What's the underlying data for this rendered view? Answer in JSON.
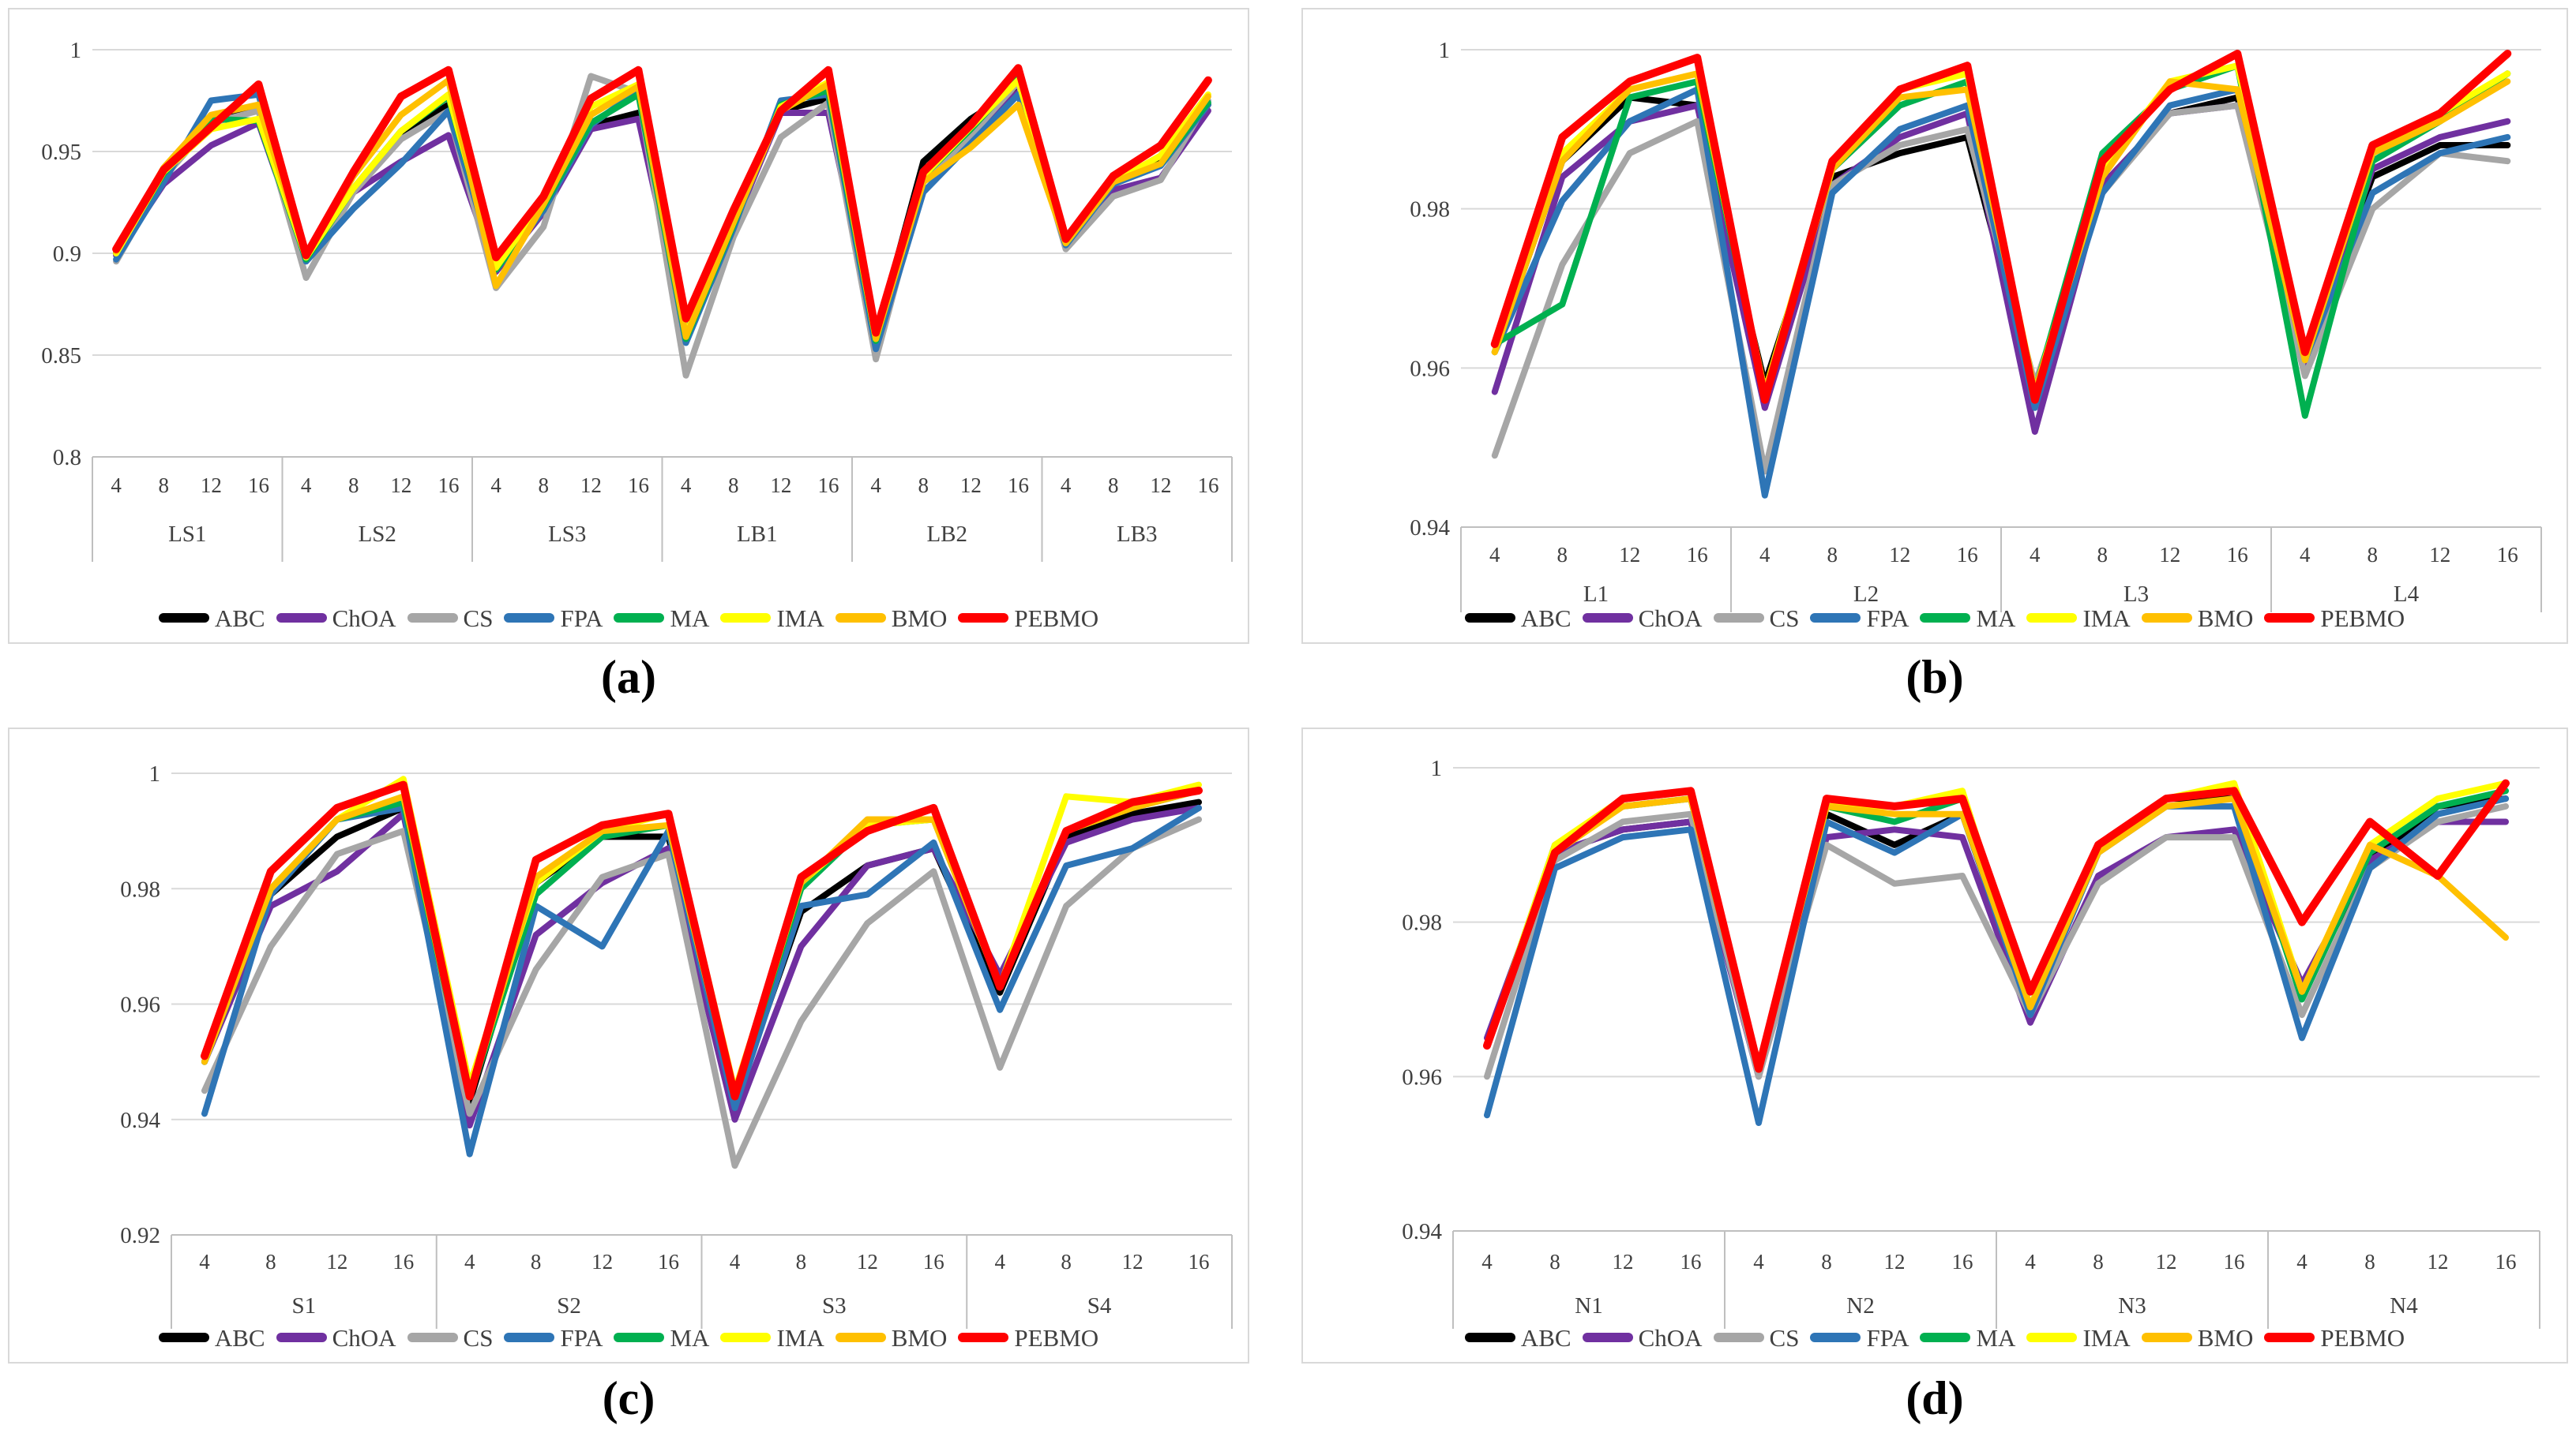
{
  "page": {
    "background": "#ffffff",
    "text_color": "#404040",
    "gridline_color": "#d9d9d9",
    "axis_line_color": "#bfbfbf"
  },
  "chart_data": [
    {
      "id": "a",
      "type": "line",
      "caption": "(a)",
      "title": "",
      "xlabel": "",
      "ylabel": "",
      "legend_position": "bottom",
      "grid": true,
      "ylim": [
        0.8,
        1.0
      ],
      "y_ticks": [
        1,
        0.95,
        0.9,
        0.85,
        0.8
      ],
      "y_tick_labels": [
        "1",
        "0.95",
        "0.9",
        "0.85",
        "0.8"
      ],
      "groups": [
        "LS1",
        "LS2",
        "LS3",
        "LB1",
        "LB2",
        "LB3"
      ],
      "x_ticks_per_group": [
        "4",
        "8",
        "12",
        "16"
      ],
      "series": [
        {
          "name": "ABC",
          "color": "#000000",
          "values": [
            0.9,
            0.938,
            0.965,
            0.972,
            0.898,
            0.931,
            0.958,
            0.973,
            0.891,
            0.922,
            0.963,
            0.969,
            0.86,
            0.914,
            0.97,
            0.976,
            0.859,
            0.945,
            0.966,
            0.981,
            0.905,
            0.936,
            0.945,
            0.973
          ]
        },
        {
          "name": "ChOA",
          "color": "#7030a0",
          "values": [
            0.899,
            0.934,
            0.953,
            0.964,
            0.897,
            0.93,
            0.945,
            0.958,
            0.891,
            0.92,
            0.961,
            0.966,
            0.861,
            0.913,
            0.969,
            0.969,
            0.86,
            0.937,
            0.959,
            0.979,
            0.905,
            0.931,
            0.937,
            0.97
          ]
        },
        {
          "name": "CS",
          "color": "#a6a6a6",
          "values": [
            0.896,
            0.937,
            0.964,
            0.97,
            0.888,
            0.93,
            0.956,
            0.97,
            0.883,
            0.913,
            0.987,
            0.979,
            0.84,
            0.908,
            0.957,
            0.974,
            0.848,
            0.935,
            0.958,
            0.984,
            0.902,
            0.928,
            0.936,
            0.975
          ]
        },
        {
          "name": "FPA",
          "color": "#2e75b6",
          "values": [
            0.897,
            0.935,
            0.975,
            0.978,
            0.896,
            0.922,
            0.944,
            0.97,
            0.892,
            0.921,
            0.963,
            0.98,
            0.856,
            0.912,
            0.975,
            0.978,
            0.853,
            0.93,
            0.954,
            0.978,
            0.904,
            0.934,
            0.943,
            0.973
          ]
        },
        {
          "name": "MA",
          "color": "#00b050",
          "values": [
            0.901,
            0.939,
            0.966,
            0.965,
            0.897,
            0.932,
            0.96,
            0.977,
            0.892,
            0.923,
            0.964,
            0.978,
            0.858,
            0.914,
            0.973,
            0.98,
            0.857,
            0.938,
            0.961,
            0.986,
            0.905,
            0.935,
            0.944,
            0.974
          ]
        },
        {
          "name": "IMA",
          "color": "#ffff00",
          "values": [
            0.9,
            0.94,
            0.961,
            0.966,
            0.898,
            0.932,
            0.96,
            0.978,
            0.893,
            0.926,
            0.972,
            0.983,
            0.86,
            0.917,
            0.972,
            0.984,
            0.858,
            0.938,
            0.962,
            0.985,
            0.905,
            0.935,
            0.948,
            0.978
          ]
        },
        {
          "name": "BMO",
          "color": "#ffc000",
          "values": [
            0.901,
            0.942,
            0.968,
            0.973,
            0.899,
            0.938,
            0.968,
            0.985,
            0.884,
            0.924,
            0.968,
            0.982,
            0.859,
            0.915,
            0.97,
            0.983,
            0.858,
            0.935,
            0.952,
            0.973,
            0.905,
            0.935,
            0.944,
            0.977
          ]
        },
        {
          "name": "PEBMO",
          "color": "#ff0000",
          "values": [
            0.902,
            0.941,
            0.962,
            0.983,
            0.899,
            0.94,
            0.977,
            0.99,
            0.898,
            0.928,
            0.976,
            0.99,
            0.868,
            0.921,
            0.97,
            0.99,
            0.861,
            0.94,
            0.963,
            0.991,
            0.907,
            0.938,
            0.953,
            0.985
          ]
        }
      ]
    },
    {
      "id": "b",
      "type": "line",
      "caption": "(b)",
      "title": "",
      "xlabel": "",
      "ylabel": "",
      "legend_position": "bottom",
      "grid": true,
      "ylim": [
        0.94,
        1.0
      ],
      "y_ticks": [
        1,
        0.98,
        0.96,
        0.94
      ],
      "y_tick_labels": [
        "1",
        "0.98",
        "0.96",
        "0.94"
      ],
      "groups": [
        "L1",
        "L2",
        "L3",
        "L4"
      ],
      "x_ticks_per_group": [
        "4",
        "8",
        "12",
        "16"
      ],
      "series": [
        {
          "name": "ABC",
          "color": "#000000",
          "values": [
            0.962,
            0.986,
            0.994,
            0.993,
            0.958,
            0.984,
            0.987,
            0.989,
            0.957,
            0.983,
            0.992,
            0.994,
            0.961,
            0.984,
            0.988,
            0.988
          ]
        },
        {
          "name": "ChOA",
          "color": "#7030a0",
          "values": [
            0.957,
            0.984,
            0.991,
            0.993,
            0.955,
            0.983,
            0.989,
            0.992,
            0.952,
            0.983,
            0.992,
            0.993,
            0.96,
            0.985,
            0.989,
            0.991
          ]
        },
        {
          "name": "CS",
          "color": "#a6a6a6",
          "values": [
            0.949,
            0.973,
            0.987,
            0.991,
            0.947,
            0.983,
            0.988,
            0.99,
            0.958,
            0.982,
            0.992,
            0.993,
            0.959,
            0.98,
            0.987,
            0.986
          ]
        },
        {
          "name": "FPA",
          "color": "#2e75b6",
          "values": [
            0.962,
            0.981,
            0.991,
            0.995,
            0.944,
            0.982,
            0.99,
            0.993,
            0.955,
            0.982,
            0.993,
            0.995,
            0.961,
            0.982,
            0.987,
            0.989
          ]
        },
        {
          "name": "MA",
          "color": "#00b050",
          "values": [
            0.963,
            0.968,
            0.994,
            0.996,
            0.957,
            0.985,
            0.993,
            0.996,
            0.957,
            0.987,
            0.995,
            0.998,
            0.954,
            0.986,
            0.991,
            0.997
          ]
        },
        {
          "name": "IMA",
          "color": "#ffff00",
          "values": [
            0.962,
            0.987,
            0.995,
            0.997,
            0.957,
            0.986,
            0.995,
            0.997,
            0.957,
            0.985,
            0.996,
            0.998,
            0.961,
            0.987,
            0.992,
            0.997
          ]
        },
        {
          "name": "BMO",
          "color": "#ffc000",
          "values": [
            0.962,
            0.986,
            0.995,
            0.997,
            0.957,
            0.985,
            0.994,
            0.995,
            0.957,
            0.984,
            0.996,
            0.995,
            0.961,
            0.987,
            0.991,
            0.996
          ]
        },
        {
          "name": "PEBMO",
          "color": "#ff0000",
          "values": [
            0.963,
            0.989,
            0.996,
            0.999,
            0.956,
            0.986,
            0.995,
            0.998,
            0.956,
            0.986,
            0.995,
            0.9995,
            0.962,
            0.988,
            0.992,
            0.9995
          ]
        }
      ]
    },
    {
      "id": "c",
      "type": "line",
      "caption": "(c)",
      "title": "",
      "xlabel": "",
      "ylabel": "",
      "legend_position": "bottom",
      "grid": true,
      "ylim": [
        0.92,
        1.0
      ],
      "y_ticks": [
        1,
        0.98,
        0.96,
        0.94,
        0.92
      ],
      "y_tick_labels": [
        "1",
        "0.98",
        "0.96",
        "0.94",
        "0.92"
      ],
      "groups": [
        "S1",
        "S2",
        "S3",
        "S4"
      ],
      "x_ticks_per_group": [
        "4",
        "8",
        "12",
        "16"
      ],
      "series": [
        {
          "name": "ABC",
          "color": "#000000",
          "values": [
            0.95,
            0.979,
            0.989,
            0.994,
            0.943,
            0.981,
            0.989,
            0.989,
            0.943,
            0.976,
            0.984,
            0.987,
            0.962,
            0.989,
            0.993,
            0.995
          ]
        },
        {
          "name": "ChOA",
          "color": "#7030a0",
          "values": [
            0.95,
            0.977,
            0.983,
            0.993,
            0.939,
            0.972,
            0.981,
            0.987,
            0.94,
            0.97,
            0.984,
            0.987,
            0.965,
            0.988,
            0.992,
            0.994
          ]
        },
        {
          "name": "CS",
          "color": "#a6a6a6",
          "values": [
            0.945,
            0.97,
            0.986,
            0.99,
            0.941,
            0.966,
            0.982,
            0.986,
            0.932,
            0.957,
            0.974,
            0.983,
            0.949,
            0.977,
            0.987,
            0.992
          ]
        },
        {
          "name": "FPA",
          "color": "#2e75b6",
          "values": [
            0.941,
            0.979,
            0.992,
            0.994,
            0.934,
            0.977,
            0.97,
            0.99,
            0.942,
            0.977,
            0.979,
            0.988,
            0.959,
            0.984,
            0.987,
            0.994
          ]
        },
        {
          "name": "MA",
          "color": "#00b050",
          "values": [
            0.95,
            0.98,
            0.992,
            0.995,
            0.944,
            0.979,
            0.989,
            0.991,
            0.944,
            0.98,
            0.991,
            0.992,
            0.963,
            0.99,
            0.994,
            0.997
          ]
        },
        {
          "name": "IMA",
          "color": "#ffff00",
          "values": [
            0.951,
            0.98,
            0.992,
            0.999,
            0.946,
            0.981,
            0.99,
            0.993,
            0.945,
            0.981,
            0.991,
            0.992,
            0.963,
            0.996,
            0.995,
            0.998
          ]
        },
        {
          "name": "BMO",
          "color": "#ffc000",
          "values": [
            0.95,
            0.98,
            0.992,
            0.996,
            0.944,
            0.982,
            0.99,
            0.991,
            0.944,
            0.981,
            0.992,
            0.992,
            0.963,
            0.99,
            0.994,
            0.997
          ]
        },
        {
          "name": "PEBMO",
          "color": "#ff0000",
          "values": [
            0.951,
            0.983,
            0.994,
            0.998,
            0.944,
            0.985,
            0.991,
            0.993,
            0.944,
            0.982,
            0.99,
            0.994,
            0.963,
            0.99,
            0.995,
            0.997
          ]
        }
      ]
    },
    {
      "id": "d",
      "type": "line",
      "caption": "(d)",
      "title": "",
      "xlabel": "",
      "ylabel": "",
      "legend_position": "bottom",
      "grid": true,
      "ylim": [
        0.94,
        1.0
      ],
      "y_ticks": [
        1,
        0.98,
        0.96,
        0.94
      ],
      "y_tick_labels": [
        "1",
        "0.98",
        "0.96",
        "0.94"
      ],
      "groups": [
        "N1",
        "N2",
        "N3",
        "N4"
      ],
      "x_ticks_per_group": [
        "4",
        "8",
        "12",
        "16"
      ],
      "series": [
        {
          "name": "ABC",
          "color": "#000000",
          "values": [
            0.964,
            0.989,
            0.992,
            0.993,
            0.961,
            0.994,
            0.99,
            0.994,
            0.969,
            0.989,
            0.996,
            0.996,
            0.971,
            0.988,
            0.995,
            0.996
          ]
        },
        {
          "name": "ChOA",
          "color": "#7030a0",
          "values": [
            0.965,
            0.989,
            0.992,
            0.993,
            0.96,
            0.991,
            0.992,
            0.991,
            0.967,
            0.986,
            0.991,
            0.992,
            0.972,
            0.988,
            0.993,
            0.993
          ]
        },
        {
          "name": "CS",
          "color": "#a6a6a6",
          "values": [
            0.96,
            0.988,
            0.993,
            0.994,
            0.96,
            0.99,
            0.985,
            0.986,
            0.968,
            0.985,
            0.991,
            0.991,
            0.968,
            0.987,
            0.993,
            0.995
          ]
        },
        {
          "name": "FPA",
          "color": "#2e75b6",
          "values": [
            0.955,
            0.987,
            0.991,
            0.992,
            0.954,
            0.993,
            0.989,
            0.994,
            0.968,
            0.989,
            0.995,
            0.995,
            0.965,
            0.987,
            0.994,
            0.996
          ]
        },
        {
          "name": "MA",
          "color": "#00b050",
          "values": [
            0.964,
            0.99,
            0.995,
            0.996,
            0.961,
            0.995,
            0.993,
            0.996,
            0.969,
            0.99,
            0.996,
            0.997,
            0.97,
            0.989,
            0.995,
            0.997
          ]
        },
        {
          "name": "IMA",
          "color": "#ffff00",
          "values": [
            0.964,
            0.99,
            0.996,
            0.997,
            0.961,
            0.995,
            0.995,
            0.997,
            0.969,
            0.99,
            0.996,
            0.998,
            0.971,
            0.99,
            0.996,
            0.998
          ]
        },
        {
          "name": "BMO",
          "color": "#ffc000",
          "values": [
            0.964,
            0.989,
            0.995,
            0.996,
            0.961,
            0.995,
            0.994,
            0.994,
            0.969,
            0.989,
            0.995,
            0.996,
            0.971,
            0.99,
            0.986,
            0.978
          ]
        },
        {
          "name": "PEBMO",
          "color": "#ff0000",
          "values": [
            0.964,
            0.989,
            0.996,
            0.997,
            0.961,
            0.996,
            0.995,
            0.996,
            0.971,
            0.99,
            0.996,
            0.997,
            0.98,
            0.993,
            0.986,
            0.998
          ]
        }
      ]
    }
  ]
}
